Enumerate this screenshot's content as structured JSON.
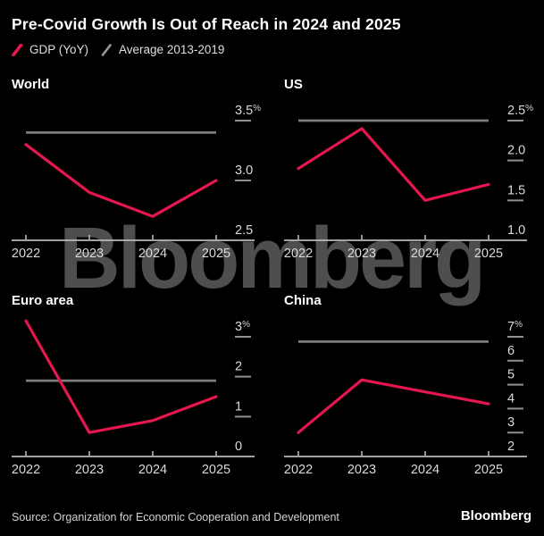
{
  "title": {
    "text": "Pre-Covid Growth Is Out of Reach in 2024 and 2025"
  },
  "legend": {
    "items": [
      {
        "label": "GDP (YoY)",
        "color": "#e6164e"
      },
      {
        "label": "Average 2013-2019",
        "color": "#9a9a9a"
      }
    ]
  },
  "watermark": "Bloomberg",
  "footer": {
    "source": "Source: Organization for Economic Cooperation and Development",
    "brand": "Bloomberg"
  },
  "colors": {
    "background": "#000000",
    "gdp_line": "#e6164e",
    "average_line": "#7d7d7d",
    "axis": "#b9b9b9",
    "tick_label": "#d9d9d9",
    "tick_dash": "#8f8f8f",
    "watermark": "#4e4e4e"
  },
  "chart_data": [
    {
      "type": "line",
      "title": "World",
      "categories": [
        "2022",
        "2023",
        "2024",
        "2025"
      ],
      "series": [
        {
          "name": "GDP (YoY)",
          "values": [
            3.3,
            2.9,
            2.7,
            3.0
          ],
          "color": "#e6164e"
        },
        {
          "name": "Average 2013-2019",
          "values": [
            3.4,
            3.4,
            3.4,
            3.4
          ],
          "color": "#7d7d7d"
        }
      ],
      "ylim": [
        2.5,
        3.5
      ],
      "yticks": [
        2.5,
        3.0,
        3.5
      ],
      "ytick_labels": [
        "2.5",
        "3.0",
        "3.5%"
      ],
      "grid": false,
      "legend_position": "figure-top"
    },
    {
      "type": "line",
      "title": "US",
      "categories": [
        "2022",
        "2023",
        "2024",
        "2025"
      ],
      "series": [
        {
          "name": "GDP (YoY)",
          "values": [
            1.9,
            2.4,
            1.5,
            1.7
          ],
          "color": "#e6164e"
        },
        {
          "name": "Average 2013-2019",
          "values": [
            2.5,
            2.5,
            2.5,
            2.5
          ],
          "color": "#7d7d7d"
        }
      ],
      "ylim": [
        1.0,
        2.5
      ],
      "yticks": [
        1.0,
        1.5,
        2.0,
        2.5
      ],
      "ytick_labels": [
        "1.0",
        "1.5",
        "2.0",
        "2.5%"
      ],
      "grid": false,
      "legend_position": "figure-top"
    },
    {
      "type": "line",
      "title": "Euro area",
      "categories": [
        "2022",
        "2023",
        "2024",
        "2025"
      ],
      "series": [
        {
          "name": "GDP (YoY)",
          "values": [
            3.4,
            0.6,
            0.9,
            1.5
          ],
          "color": "#e6164e"
        },
        {
          "name": "Average 2013-2019",
          "values": [
            1.9,
            1.9,
            1.9,
            1.9
          ],
          "color": "#7d7d7d"
        }
      ],
      "ylim": [
        0,
        3
      ],
      "yticks": [
        0,
        1,
        2,
        3
      ],
      "ytick_labels": [
        "0",
        "1",
        "2",
        "3%"
      ],
      "grid": false,
      "legend_position": "figure-top"
    },
    {
      "type": "line",
      "title": "China",
      "categories": [
        "2022",
        "2023",
        "2024",
        "2025"
      ],
      "series": [
        {
          "name": "GDP (YoY)",
          "values": [
            3.0,
            5.2,
            4.7,
            4.2
          ],
          "color": "#e6164e"
        },
        {
          "name": "Average 2013-2019",
          "values": [
            6.8,
            6.8,
            6.8,
            6.8
          ],
          "color": "#7d7d7d"
        }
      ],
      "ylim": [
        2,
        7
      ],
      "yticks": [
        2,
        3,
        4,
        5,
        6,
        7
      ],
      "ytick_labels": [
        "2",
        "3",
        "4",
        "5",
        "6",
        "7%"
      ],
      "grid": false,
      "legend_position": "figure-top"
    }
  ]
}
